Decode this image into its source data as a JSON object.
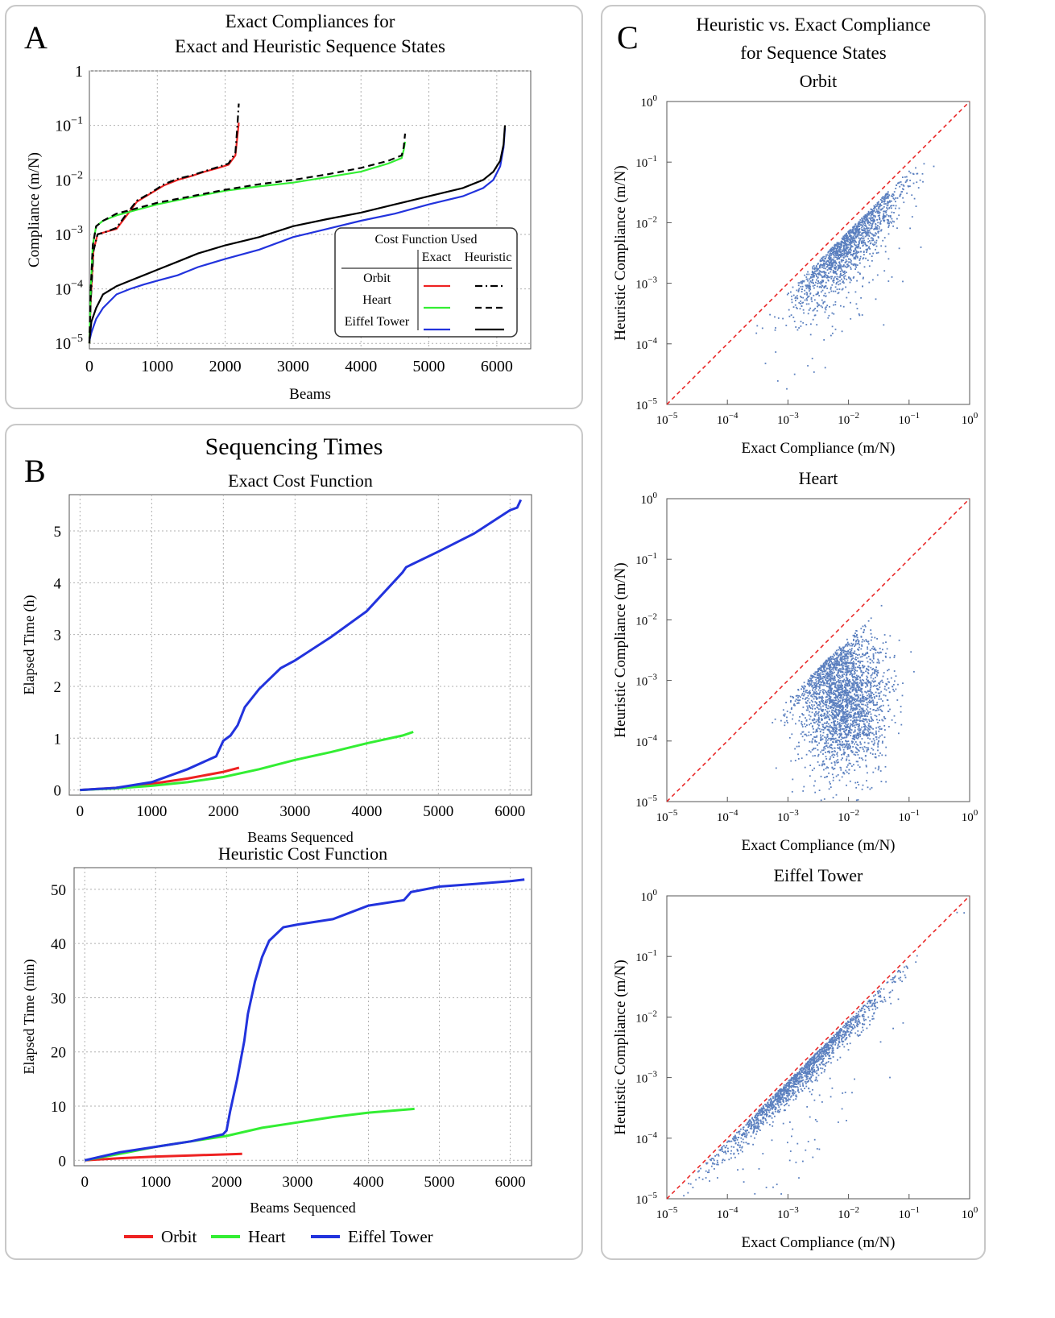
{
  "panelA": {
    "letter": "A",
    "title1": "Exact Compliances for",
    "title2": "Exact and Heuristic Sequence States"
  },
  "panelB": {
    "letter": "B",
    "title": "Sequencing Times"
  },
  "panelC": {
    "letter": "C",
    "title1": "Heuristic vs. Exact Compliance",
    "title2": "for Sequence States"
  },
  "colors": {
    "orbit": "#ee2222",
    "heart": "#33ee33",
    "eiffel": "#2233dd",
    "heuristic": "#000000",
    "scatter": "#5a7fbf",
    "diagonal": "#e82020",
    "grid": "#b0b0b0"
  },
  "chart_data": [
    {
      "id": "compliances",
      "type": "line",
      "title": "Exact Compliances for Exact and Heuristic Sequence States",
      "xlabel": "Beams",
      "ylabel": "Compliance (m/N)",
      "xlim": [
        0,
        6500
      ],
      "ylim_log10": [
        -5.1,
        0
      ],
      "x_ticks": [
        "0",
        "1000",
        "2000",
        "3000",
        "4000",
        "5000",
        "6000"
      ],
      "y_ticks": [
        "1",
        "10^-1",
        "10^-2",
        "10^-3",
        "10^-4",
        "10^-5"
      ],
      "legend": {
        "title": "Cost Function Used",
        "col_exact": "Exact",
        "col_heuristic": "Heuristic",
        "rows": [
          "Orbit",
          "Heart",
          "Eiffel Tower"
        ],
        "position": "bottom-right"
      },
      "series": [
        {
          "name": "Orbit",
          "cost": "Exact",
          "x": [
            0,
            20,
            60,
            120,
            250,
            400,
            550,
            700,
            900,
            1100,
            1300,
            1500,
            1700,
            1900,
            2050,
            2150,
            2180,
            2200
          ],
          "log10_y": [
            -5.0,
            -4.2,
            -3.3,
            -3.0,
            -2.95,
            -2.9,
            -2.65,
            -2.4,
            -2.25,
            -2.1,
            -2.0,
            -1.93,
            -1.85,
            -1.78,
            -1.72,
            -1.55,
            -1.2,
            -0.95
          ]
        },
        {
          "name": "Orbit",
          "cost": "Heuristic",
          "x": [
            0,
            20,
            60,
            120,
            250,
            400,
            550,
            700,
            900,
            1100,
            1300,
            1500,
            1700,
            1900,
            2050,
            2150,
            2180,
            2200
          ],
          "log10_y": [
            -5.0,
            -4.2,
            -3.3,
            -3.0,
            -2.95,
            -2.88,
            -2.62,
            -2.38,
            -2.24,
            -2.08,
            -1.98,
            -1.92,
            -1.84,
            -1.76,
            -1.7,
            -1.5,
            -1.0,
            -0.6
          ]
        },
        {
          "name": "Heart",
          "cost": "Exact",
          "x": [
            0,
            20,
            50,
            100,
            200,
            400,
            700,
            1000,
            1500,
            2000,
            2500,
            3000,
            3500,
            4000,
            4400,
            4600,
            4630,
            4650
          ],
          "log10_y": [
            -5.0,
            -4.0,
            -3.2,
            -2.85,
            -2.75,
            -2.65,
            -2.55,
            -2.45,
            -2.32,
            -2.2,
            -2.12,
            -2.05,
            -1.95,
            -1.85,
            -1.7,
            -1.6,
            -1.45,
            -1.3
          ]
        },
        {
          "name": "Heart",
          "cost": "Heuristic",
          "x": [
            0,
            20,
            50,
            100,
            200,
            400,
            700,
            1000,
            1500,
            2000,
            2500,
            3000,
            3500,
            4000,
            4400,
            4600,
            4630,
            4650
          ],
          "log10_y": [
            -5.0,
            -4.0,
            -3.2,
            -2.85,
            -2.75,
            -2.62,
            -2.52,
            -2.42,
            -2.3,
            -2.18,
            -2.08,
            -2.0,
            -1.9,
            -1.78,
            -1.65,
            -1.55,
            -1.4,
            -1.15
          ]
        },
        {
          "name": "Eiffel Tower",
          "cost": "Exact",
          "x": [
            0,
            30,
            100,
            200,
            400,
            600,
            800,
            1000,
            1300,
            1600,
            2000,
            2500,
            3000,
            3500,
            4000,
            4500,
            5000,
            5500,
            5800,
            5950,
            6050,
            6100,
            6120
          ],
          "log10_y": [
            -4.95,
            -4.8,
            -4.55,
            -4.35,
            -4.1,
            -4.0,
            -3.92,
            -3.85,
            -3.75,
            -3.6,
            -3.45,
            -3.28,
            -3.05,
            -2.9,
            -2.75,
            -2.62,
            -2.45,
            -2.3,
            -2.15,
            -2.0,
            -1.75,
            -1.4,
            -1.05
          ]
        },
        {
          "name": "Eiffel Tower",
          "cost": "Heuristic",
          "x": [
            0,
            30,
            100,
            200,
            400,
            600,
            800,
            1000,
            1300,
            1600,
            2000,
            2500,
            3000,
            3500,
            4000,
            4500,
            5000,
            5500,
            5800,
            5950,
            6050,
            6100,
            6120
          ],
          "log10_y": [
            -4.95,
            -4.6,
            -4.35,
            -4.1,
            -3.95,
            -3.85,
            -3.75,
            -3.65,
            -3.5,
            -3.35,
            -3.2,
            -3.05,
            -2.85,
            -2.72,
            -2.6,
            -2.45,
            -2.3,
            -2.15,
            -2.0,
            -1.85,
            -1.65,
            -1.35,
            -1.0
          ]
        }
      ]
    },
    {
      "id": "exact_times",
      "type": "line",
      "title": "Exact Cost Function",
      "xlabel": "Beams Sequenced",
      "ylabel": "Elapsed Time (h)",
      "xlim": [
        -150,
        6300
      ],
      "ylim": [
        -0.1,
        5.7
      ],
      "x_ticks": [
        "0",
        "1000",
        "2000",
        "3000",
        "4000",
        "5000",
        "6000"
      ],
      "y_ticks": [
        "0",
        "1",
        "2",
        "3",
        "4",
        "5"
      ],
      "series": [
        {
          "name": "Orbit",
          "x": [
            0,
            500,
            1000,
            1500,
            2000,
            2220
          ],
          "values": [
            0,
            0.04,
            0.12,
            0.22,
            0.35,
            0.43
          ]
        },
        {
          "name": "Heart",
          "x": [
            0,
            500,
            1000,
            1500,
            2000,
            2500,
            3000,
            3500,
            4000,
            4500,
            4650
          ],
          "values": [
            0,
            0.03,
            0.08,
            0.15,
            0.25,
            0.4,
            0.58,
            0.73,
            0.9,
            1.05,
            1.12
          ]
        },
        {
          "name": "Eiffel Tower",
          "x": [
            0,
            500,
            1000,
            1500,
            1900,
            2000,
            2100,
            2200,
            2300,
            2500,
            2800,
            3000,
            3500,
            4000,
            4500,
            4550,
            5000,
            5500,
            6000,
            6100,
            6150
          ],
          "values": [
            0,
            0.04,
            0.15,
            0.4,
            0.65,
            0.95,
            1.05,
            1.25,
            1.6,
            1.95,
            2.35,
            2.5,
            2.95,
            3.45,
            4.2,
            4.3,
            4.6,
            4.95,
            5.4,
            5.45,
            5.6
          ]
        }
      ]
    },
    {
      "id": "heuristic_times",
      "type": "line",
      "title": "Heuristic Cost Function",
      "xlabel": "Beams Sequenced",
      "ylabel": "Elapsed Time (min)",
      "xlim": [
        -150,
        6300
      ],
      "ylim": [
        -1,
        54
      ],
      "x_ticks": [
        "0",
        "1000",
        "2000",
        "3000",
        "4000",
        "5000",
        "6000"
      ],
      "y_ticks": [
        "0",
        "10",
        "20",
        "30",
        "40",
        "50"
      ],
      "legend": {
        "items": [
          "Orbit",
          "Heart",
          "Eiffel Tower"
        ],
        "position": "bottom"
      },
      "series": [
        {
          "name": "Orbit",
          "x": [
            0,
            500,
            1000,
            1500,
            2000,
            2220
          ],
          "values": [
            0,
            0.4,
            0.7,
            0.9,
            1.1,
            1.2
          ]
        },
        {
          "name": "Heart",
          "x": [
            0,
            500,
            1000,
            1500,
            2000,
            2500,
            3000,
            3500,
            4000,
            4650
          ],
          "values": [
            0,
            1.2,
            2.5,
            3.5,
            4.5,
            6.0,
            7.0,
            8.0,
            8.8,
            9.5
          ]
        },
        {
          "name": "Eiffel Tower",
          "x": [
            0,
            500,
            1000,
            1500,
            1950,
            2000,
            2050,
            2150,
            2250,
            2300,
            2400,
            2500,
            2600,
            2800,
            3000,
            3500,
            4000,
            4500,
            4600,
            5000,
            5500,
            6000,
            6200
          ],
          "values": [
            0,
            1.5,
            2.5,
            3.5,
            4.8,
            5.5,
            9.0,
            15,
            22,
            27,
            33,
            37.5,
            40.5,
            43,
            43.5,
            44.5,
            47,
            48,
            49.5,
            50.5,
            51,
            51.5,
            51.8
          ]
        }
      ]
    },
    {
      "id": "scatter_orbit",
      "type": "scatter",
      "title": "Orbit",
      "xlabel": "Exact Compliance (m/N)",
      "ylabel": "Heuristic Compliance (m/N)",
      "log10_range": [
        -5,
        0
      ],
      "tick_exponents": [
        -5,
        -4,
        -3,
        -2,
        -1,
        0
      ],
      "diagonal": "y = x",
      "cluster": {
        "description": "points along and below the diagonal",
        "log10_x_center": -2.0,
        "log10_y_offset": -0.35,
        "spread_log10": 0.45
      }
    },
    {
      "id": "scatter_heart",
      "type": "scatter",
      "title": "Heart",
      "xlabel": "Exact Compliance (m/N)",
      "ylabel": "Heuristic Compliance (m/N)",
      "log10_range": [
        -5,
        0
      ],
      "tick_exponents": [
        -5,
        -4,
        -3,
        -2,
        -1,
        0
      ],
      "diagonal": "y = x",
      "cluster": {
        "description": "broad cloud below the diagonal",
        "log10_x_center": -2.1,
        "log10_y_center": -3.3,
        "spread_x_log10": 0.35,
        "spread_y_log10": 0.6
      }
    },
    {
      "id": "scatter_eiffel",
      "type": "scatter",
      "title": "Eiffel Tower",
      "xlabel": "Exact Compliance (m/N)",
      "ylabel": "Heuristic Compliance (m/N)",
      "log10_range": [
        -5,
        0
      ],
      "tick_exponents": [
        -5,
        -4,
        -3,
        -2,
        -1,
        0
      ],
      "diagonal": "y = x",
      "cluster": {
        "description": "tight band just below the diagonal",
        "log10_x_center": -2.8,
        "log10_y_offset": -0.15,
        "spread_log10": 0.7
      }
    }
  ]
}
